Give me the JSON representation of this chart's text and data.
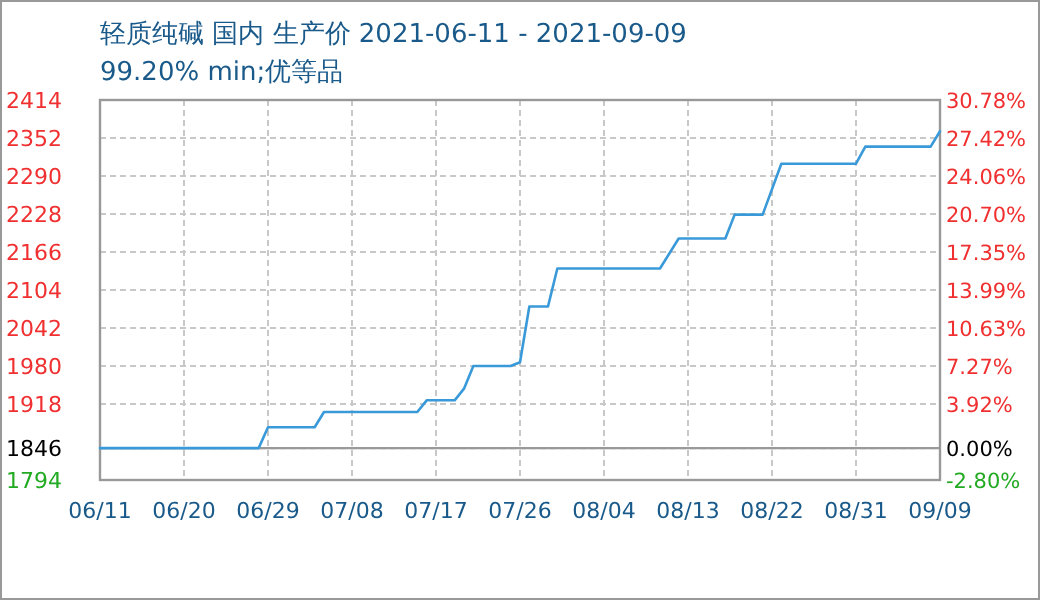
{
  "chart_data": {
    "type": "line",
    "title": "轻质纯碱 国内 生产价 2021-06-11 - 2021-09-09",
    "subtitle": "99.20% min;优等品",
    "x": [
      "2021-06-11",
      "2021-06-28",
      "2021-06-29",
      "2021-07-04",
      "2021-07-05",
      "2021-07-15",
      "2021-07-16",
      "2021-07-19",
      "2021-07-20",
      "2021-07-21",
      "2021-07-25",
      "2021-07-26",
      "2021-07-27",
      "2021-07-29",
      "2021-07-30",
      "2021-08-10",
      "2021-08-12",
      "2021-08-17",
      "2021-08-18",
      "2021-08-21",
      "2021-08-23",
      "2021-08-31",
      "2021-09-01",
      "2021-09-08",
      "2021-09-09"
    ],
    "series": [
      {
        "color": "#3a9ad9",
        "values": [
          1846,
          1846,
          1880,
          1880,
          1905,
          1905,
          1924,
          1924,
          1943,
          1980,
          1980,
          1986,
          2077,
          2077,
          2139,
          2139,
          2188,
          2188,
          2227,
          2227,
          2310,
          2310,
          2338,
          2338,
          2363
        ]
      }
    ],
    "xlim": [
      "2021-06-11",
      "2021-09-09"
    ],
    "xticks": [
      {
        "value": "2021-06-11",
        "label": "06/11"
      },
      {
        "value": "2021-06-20",
        "label": "06/20"
      },
      {
        "value": "2021-06-29",
        "label": "06/29"
      },
      {
        "value": "2021-07-08",
        "label": "07/08"
      },
      {
        "value": "2021-07-17",
        "label": "07/17"
      },
      {
        "value": "2021-07-26",
        "label": "07/26"
      },
      {
        "value": "2021-08-04",
        "label": "08/04"
      },
      {
        "value": "2021-08-13",
        "label": "08/13"
      },
      {
        "value": "2021-08-22",
        "label": "08/22"
      },
      {
        "value": "2021-08-31",
        "label": "08/31"
      },
      {
        "value": "2021-09-09",
        "label": "09/09"
      }
    ],
    "ylim": [
      1794,
      2414
    ],
    "yticks": [
      1794,
      1846,
      1918,
      1980,
      2042,
      2104,
      2166,
      2228,
      2290,
      2352,
      2414
    ],
    "y2lim": [
      -2.8,
      30.78
    ],
    "y2ticks": [
      {
        "value": -2.8,
        "label": "-2.80%"
      },
      {
        "value": 0,
        "label": "0.00%"
      },
      {
        "value": 3.92,
        "label": "3.92%"
      },
      {
        "value": 7.27,
        "label": "7.27%"
      },
      {
        "value": 10.63,
        "label": "10.63%"
      },
      {
        "value": 13.99,
        "label": "13.99%"
      },
      {
        "value": 17.35,
        "label": "17.35%"
      },
      {
        "value": 20.7,
        "label": "20.70%"
      },
      {
        "value": 24.06,
        "label": "24.06%"
      },
      {
        "value": 27.42,
        "label": "27.42%"
      },
      {
        "value": 30.78,
        "label": "30.78%"
      }
    ],
    "ref_lines": [
      {
        "axis": "y",
        "value": 1846,
        "color": "#999999",
        "line_style": "solid"
      }
    ],
    "grid": true,
    "marker": "none",
    "line_style": "solid"
  }
}
